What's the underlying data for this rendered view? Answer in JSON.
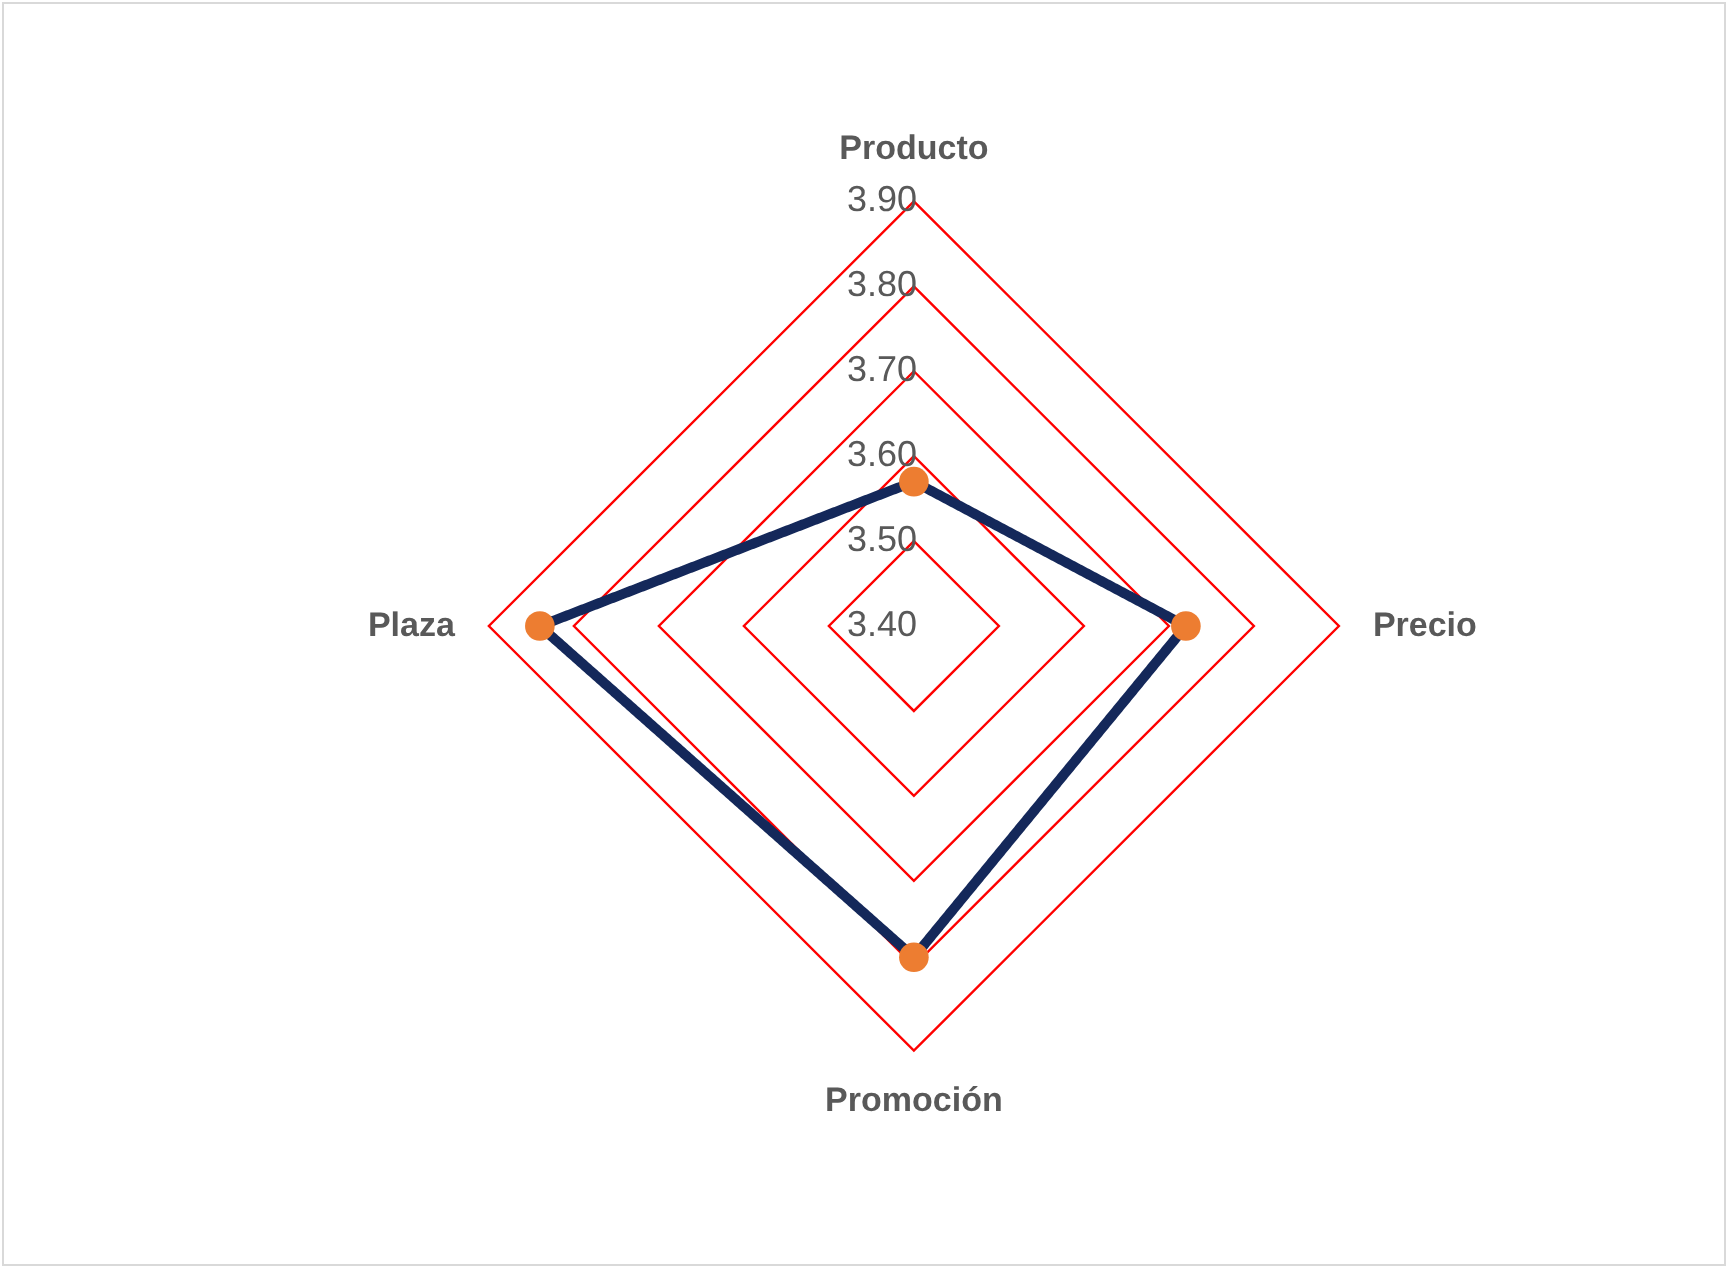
{
  "chart_data": {
    "type": "radar",
    "categories": [
      "Producto",
      "Precio",
      "Promoción",
      "Plaza"
    ],
    "series": [
      {
        "color": "#14285a",
        "colors": [
          "#ed7d31",
          "#ed7d31",
          "#ed7d31",
          "#ed7d31"
        ],
        "values": [
          3.57,
          3.72,
          3.79,
          3.84
        ]
      }
    ],
    "ylim": [
      3.4,
      3.9
    ],
    "yticks": [
      {
        "value": 3.4,
        "label": "3.40"
      },
      {
        "value": 3.5,
        "label": "3.50"
      },
      {
        "value": 3.6,
        "label": "3.60"
      },
      {
        "value": 3.7,
        "label": "3.70"
      },
      {
        "value": 3.8,
        "label": "3.80"
      },
      {
        "value": 3.9,
        "label": "3.90"
      }
    ],
    "grid": true,
    "marker": "circle",
    "line_style": "solid"
  }
}
